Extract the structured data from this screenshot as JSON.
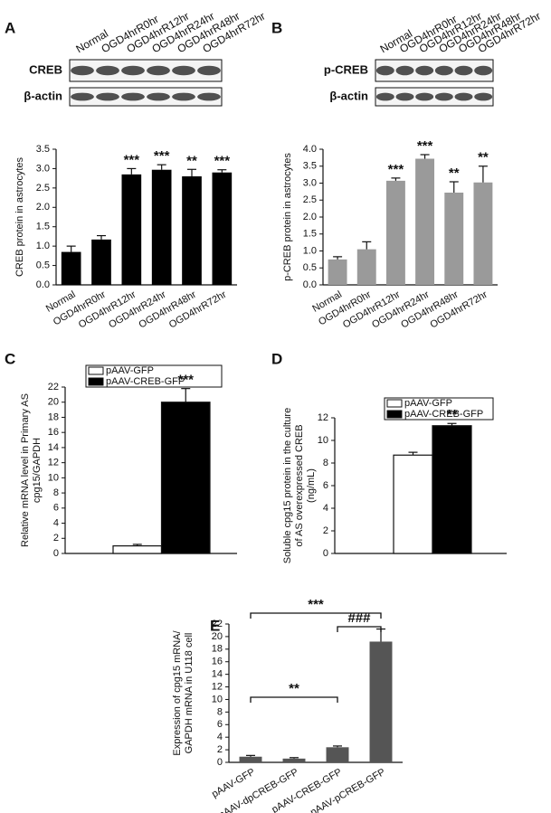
{
  "chart_data": [
    {
      "type": "bar",
      "panel": "A",
      "blot_lanes": [
        "Normal",
        "OGD4hrR0hr",
        "OGD4hrR12hr",
        "OGD4hrR24hr",
        "OGD4hrR48hr",
        "OGD4hrR72hr"
      ],
      "blot_rows": [
        "CREB",
        "β-actin"
      ],
      "ylabel": [
        "CREB protein in astrocytes"
      ],
      "categories": [
        "Normal",
        "OGD4hrR0hr",
        "OGD4hrR12hr",
        "OGD4hrR24hr",
        "OGD4hrR48hr",
        "OGD4hrR72hr"
      ],
      "values": [
        0.85,
        1.17,
        2.85,
        2.97,
        2.8,
        2.9
      ],
      "errors": [
        0.15,
        0.1,
        0.15,
        0.13,
        0.18,
        0.07
      ],
      "annotations": [
        null,
        null,
        "***",
        "***",
        "**",
        "***"
      ],
      "color": "#000000",
      "ylim": [
        0,
        3.5
      ],
      "yticks": [
        {
          "value": 0,
          "label": "0.0"
        },
        0.5,
        {
          "value": 1,
          "label": "1.0"
        },
        1.5,
        {
          "value": 2,
          "label": "2.0"
        },
        2.5,
        {
          "value": 3,
          "label": "3.0"
        },
        3.5
      ]
    },
    {
      "type": "bar",
      "panel": "B",
      "blot_lanes": [
        "Normal",
        "OGD4hrR0hr",
        "OGD4hrR12hr",
        "OGD4hrR24hr",
        "OGD4hrR48hr",
        "OGD4hrR72hr"
      ],
      "blot_rows": [
        "p-CREB",
        "β-actin"
      ],
      "ylabel": [
        "p-CREB protein in astrocytes"
      ],
      "categories": [
        "Normal",
        "OGD4hrR0hr",
        "OGD4hrR12hr",
        "OGD4hrR24hr",
        "OGD4hrR48hr",
        "OGD4hrR72hr"
      ],
      "values": [
        0.75,
        1.05,
        3.07,
        3.72,
        2.72,
        3.02
      ],
      "errors": [
        0.08,
        0.22,
        0.08,
        0.12,
        0.32,
        0.48
      ],
      "annotations": [
        null,
        null,
        "***",
        "***",
        "**",
        "**"
      ],
      "color": "#9a9a9a",
      "ylim": [
        0,
        4
      ],
      "yticks": [
        {
          "value": 0,
          "label": "0.0"
        },
        0.5,
        {
          "value": 1,
          "label": "1.0"
        },
        1.5,
        {
          "value": 2,
          "label": "2.0"
        },
        2.5,
        {
          "value": 3,
          "label": "3.0"
        },
        3.5,
        {
          "value": 4,
          "label": "4.0"
        }
      ]
    },
    {
      "type": "grouped",
      "panel": "C",
      "ylabel": [
        "Relative mRNA level in Primary AS",
        "cpg15/GAPDH"
      ],
      "series": [
        {
          "name": "pAAV-GFP",
          "color": "#ffffff",
          "values": [
            1.0
          ],
          "errors": [
            0.2
          ]
        },
        {
          "name": "pAAV-CREB-GFP",
          "color": "#000000",
          "values": [
            20.0
          ],
          "errors": [
            1.8
          ]
        }
      ],
      "annotation": "***",
      "ylim": [
        0,
        22
      ],
      "yticks": [
        0,
        2,
        4,
        6,
        8,
        10,
        12,
        14,
        16,
        18,
        20,
        22
      ]
    },
    {
      "type": "grouped",
      "panel": "D",
      "ylabel": [
        "Soluble cpg15 protein in the culture",
        "of AS overexpressed CREB",
        "(ng/mL)"
      ],
      "series": [
        {
          "name": "pAAV-GFP",
          "color": "#ffffff",
          "values": [
            8.7
          ],
          "errors": [
            0.25
          ]
        },
        {
          "name": "pAAV-CREB-GFP",
          "color": "#000000",
          "values": [
            11.3
          ],
          "errors": [
            0.2
          ]
        }
      ],
      "annotation": "**",
      "ylim": [
        0,
        12
      ],
      "yticks": [
        0,
        2,
        4,
        6,
        8,
        10,
        12
      ]
    },
    {
      "type": "bar",
      "panel": "E",
      "ylabel": [
        "Expression of cpg15 mRNA/",
        "GAPDH mRNA in U118 cell"
      ],
      "categories": [
        "pAAV-GFP",
        "pAAV-dpCREB-GFP",
        "pAAV-CREB-GFP",
        "pAAV-pCREB-GFP"
      ],
      "values": [
        0.9,
        0.6,
        2.4,
        19.2
      ],
      "errors": [
        0.2,
        0.15,
        0.2,
        2.0
      ],
      "brackets": [
        "***",
        "###",
        "**"
      ],
      "color": "#555555",
      "ylim": [
        0,
        22
      ],
      "yticks": [
        0,
        2,
        4,
        6,
        8,
        10,
        12,
        14,
        16,
        18,
        20,
        22
      ]
    }
  ]
}
